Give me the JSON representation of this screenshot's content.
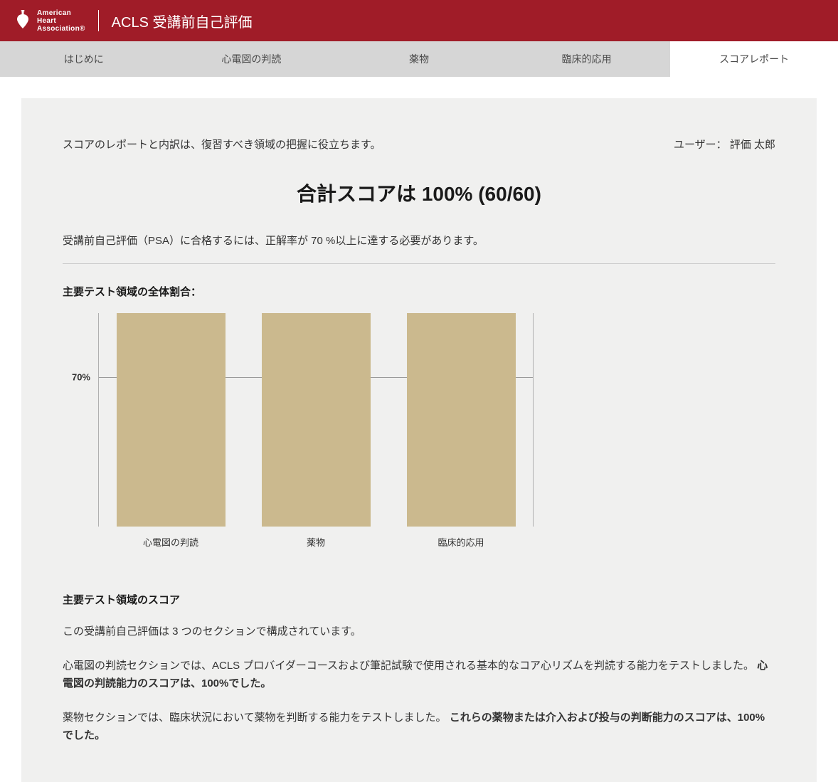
{
  "header": {
    "title": "ACLS 受講前自己評価",
    "logo_line1": "American",
    "logo_line2": "Heart",
    "logo_line3": "Association®"
  },
  "tabs": [
    {
      "label": "はじめに",
      "active": false
    },
    {
      "label": "心電図の判読",
      "active": false
    },
    {
      "label": "薬物",
      "active": false
    },
    {
      "label": "臨床的応用",
      "active": false
    },
    {
      "label": "スコアレポート",
      "active": true
    }
  ],
  "intro_text": "スコアのレポートと内訳は、復習すべき領域の把握に役立ちます。",
  "user_label": "ユーザー：",
  "user_name": "評価 太郎",
  "score_title": "合計スコアは 100% (60/60)",
  "pass_note": "受講前自己評価（PSA）に合格するには、正解率が 70 %以上に達する必要があります。",
  "chart": {
    "type": "bar",
    "heading": "主要テスト領域の全体割合：",
    "categories": [
      "心電図の判読",
      "薬物",
      "臨床的応用"
    ],
    "values": [
      100,
      100,
      100
    ],
    "ylim": [
      0,
      100
    ],
    "threshold": 70,
    "threshold_label": "70%",
    "bar_color": "#cbb98e",
    "grid_color": "#9a9a9a",
    "background_color": "#f0f0ef",
    "bar_width_pct": 75,
    "label_fontsize": 13
  },
  "body": {
    "heading": "主要テスト領域のスコア",
    "para1": "この受講前自己評価は 3 つのセクションで構成されています。",
    "para2_a": "心電図の判読セクションでは、ACLS プロバイダーコースおよび筆記試験で使用される基本的なコア心リズムを判読する能力をテストしました。",
    "para2_b": "心電図の判読能力のスコアは、100%でした。",
    "para3_a": "薬物セクションでは、臨床状況において薬物を判断する能力をテストしました。",
    "para3_b": "これらの薬物または介入および投与の判断能力のスコアは、100%でした。"
  },
  "colors": {
    "brand_red": "#a01c28",
    "tab_bg": "#d6d6d6",
    "tab_active_bg": "#ffffff",
    "content_bg": "#f0f0ef",
    "text": "#333333"
  }
}
